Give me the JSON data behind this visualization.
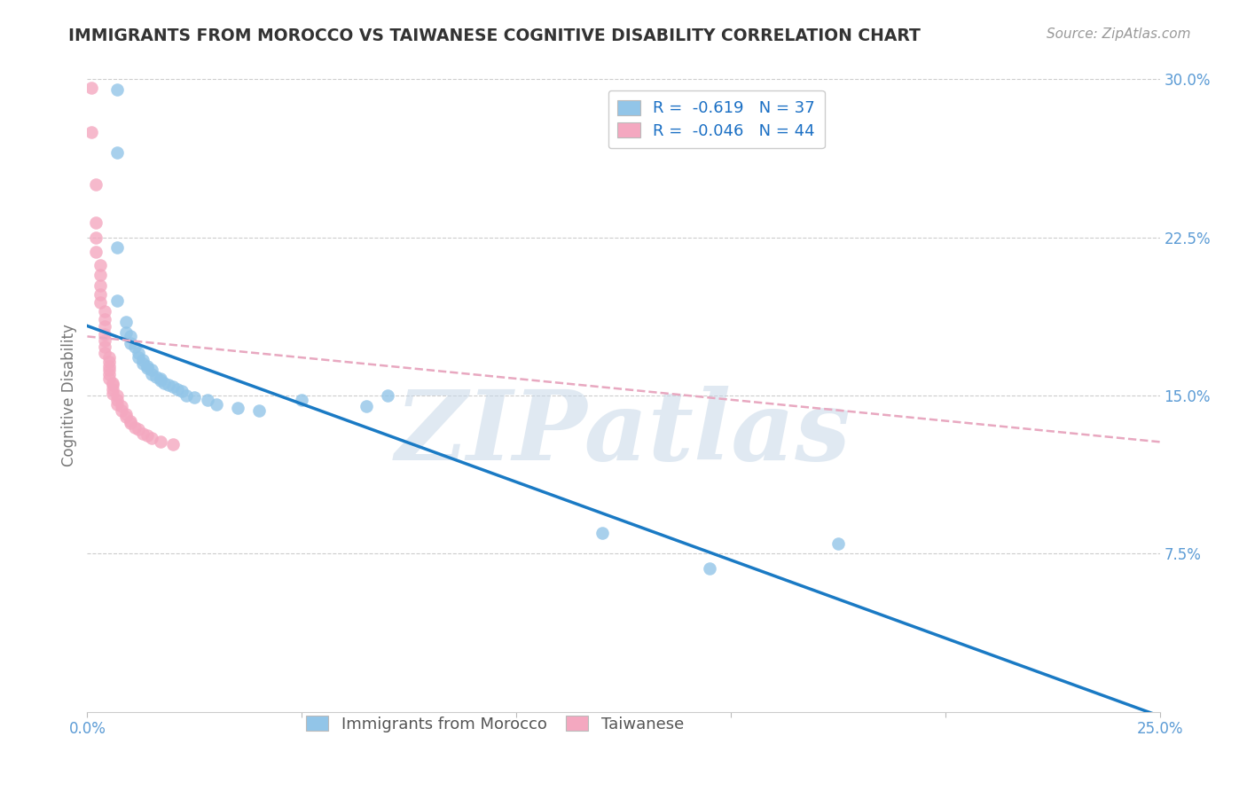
{
  "title": "IMMIGRANTS FROM MOROCCO VS TAIWANESE COGNITIVE DISABILITY CORRELATION CHART",
  "source": "Source: ZipAtlas.com",
  "ylabel": "Cognitive Disability",
  "xlim": [
    0.0,
    0.25
  ],
  "ylim": [
    0.0,
    0.3
  ],
  "xticks": [
    0.0,
    0.05,
    0.1,
    0.15,
    0.2,
    0.25
  ],
  "xticklabels": [
    "0.0%",
    "",
    "",
    "",
    "",
    "25.0%"
  ],
  "yticks_right": [
    0.075,
    0.15,
    0.225,
    0.3
  ],
  "yticklabels_right": [
    "7.5%",
    "15.0%",
    "22.5%",
    "30.0%"
  ],
  "legend_r_blue": "-0.619",
  "legend_n_blue": "37",
  "legend_r_pink": "-0.046",
  "legend_n_pink": "44",
  "blue_color": "#92c5e8",
  "pink_color": "#f4a8c0",
  "blue_line_color": "#1a7ac4",
  "pink_line_color": "#e8a8c0",
  "watermark_text": "ZIPatlas",
  "background_color": "#ffffff",
  "grid_color": "#cccccc",
  "axis_label_color": "#5b9bd5",
  "title_color": "#333333",
  "blue_scatter": [
    [
      0.007,
      0.295
    ],
    [
      0.007,
      0.265
    ],
    [
      0.007,
      0.22
    ],
    [
      0.007,
      0.195
    ],
    [
      0.009,
      0.185
    ],
    [
      0.009,
      0.18
    ],
    [
      0.01,
      0.178
    ],
    [
      0.01,
      0.175
    ],
    [
      0.011,
      0.173
    ],
    [
      0.012,
      0.17
    ],
    [
      0.012,
      0.168
    ],
    [
      0.013,
      0.167
    ],
    [
      0.013,
      0.165
    ],
    [
      0.014,
      0.164
    ],
    [
      0.014,
      0.163
    ],
    [
      0.015,
      0.162
    ],
    [
      0.015,
      0.16
    ],
    [
      0.016,
      0.159
    ],
    [
      0.017,
      0.158
    ],
    [
      0.017,
      0.157
    ],
    [
      0.018,
      0.156
    ],
    [
      0.019,
      0.155
    ],
    [
      0.02,
      0.154
    ],
    [
      0.021,
      0.153
    ],
    [
      0.022,
      0.152
    ],
    [
      0.023,
      0.15
    ],
    [
      0.025,
      0.149
    ],
    [
      0.028,
      0.148
    ],
    [
      0.03,
      0.146
    ],
    [
      0.035,
      0.144
    ],
    [
      0.04,
      0.143
    ],
    [
      0.05,
      0.148
    ],
    [
      0.065,
      0.145
    ],
    [
      0.07,
      0.15
    ],
    [
      0.12,
      0.085
    ],
    [
      0.145,
      0.068
    ],
    [
      0.175,
      0.08
    ]
  ],
  "pink_scatter": [
    [
      0.001,
      0.296
    ],
    [
      0.001,
      0.275
    ],
    [
      0.002,
      0.25
    ],
    [
      0.002,
      0.232
    ],
    [
      0.002,
      0.225
    ],
    [
      0.002,
      0.218
    ],
    [
      0.003,
      0.212
    ],
    [
      0.003,
      0.207
    ],
    [
      0.003,
      0.202
    ],
    [
      0.003,
      0.198
    ],
    [
      0.003,
      0.194
    ],
    [
      0.004,
      0.19
    ],
    [
      0.004,
      0.186
    ],
    [
      0.004,
      0.183
    ],
    [
      0.004,
      0.179
    ],
    [
      0.004,
      0.176
    ],
    [
      0.004,
      0.173
    ],
    [
      0.004,
      0.17
    ],
    [
      0.005,
      0.168
    ],
    [
      0.005,
      0.166
    ],
    [
      0.005,
      0.164
    ],
    [
      0.005,
      0.162
    ],
    [
      0.005,
      0.16
    ],
    [
      0.005,
      0.158
    ],
    [
      0.006,
      0.156
    ],
    [
      0.006,
      0.155
    ],
    [
      0.006,
      0.153
    ],
    [
      0.006,
      0.151
    ],
    [
      0.007,
      0.15
    ],
    [
      0.007,
      0.148
    ],
    [
      0.007,
      0.146
    ],
    [
      0.008,
      0.145
    ],
    [
      0.008,
      0.143
    ],
    [
      0.009,
      0.141
    ],
    [
      0.009,
      0.14
    ],
    [
      0.01,
      0.138
    ],
    [
      0.01,
      0.137
    ],
    [
      0.011,
      0.135
    ],
    [
      0.012,
      0.134
    ],
    [
      0.013,
      0.132
    ],
    [
      0.014,
      0.131
    ],
    [
      0.015,
      0.13
    ],
    [
      0.017,
      0.128
    ],
    [
      0.02,
      0.127
    ]
  ],
  "blue_line_x": [
    0.0,
    0.25
  ],
  "blue_line_y": [
    0.183,
    -0.002
  ],
  "pink_line_x": [
    0.0,
    0.25
  ],
  "pink_line_y": [
    0.178,
    0.128
  ]
}
